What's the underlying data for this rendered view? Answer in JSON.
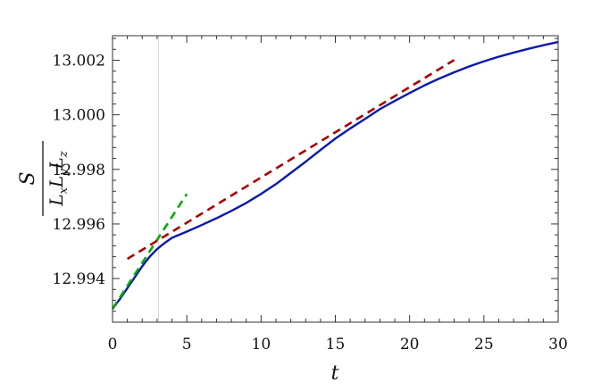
{
  "chart_data": {
    "type": "line",
    "title": "",
    "xlabel": "t",
    "ylabel": {
      "numerator": "S",
      "denominator": [
        "L",
        "x",
        "L",
        "y",
        "L",
        "z"
      ]
    },
    "xlim": [
      0,
      30
    ],
    "ylim": [
      12.9924,
      13.0029
    ],
    "x_ticks": [
      0,
      5,
      10,
      15,
      20,
      25,
      30
    ],
    "x_tick_labels": [
      "0",
      "5",
      "10",
      "15",
      "20",
      "25",
      "30"
    ],
    "y_ticks": [
      12.994,
      12.996,
      12.998,
      13.0,
      13.002
    ],
    "y_tick_labels": [
      "12.994",
      "12.996",
      "12.998",
      "13.000",
      "13.002"
    ],
    "grid": false,
    "legend": "none",
    "reference_line_x": 3.1,
    "series": [
      {
        "style": "solid",
        "color": "#0a1aa8",
        "x": [
          0,
          0.5,
          1,
          1.5,
          2,
          2.5,
          3,
          3.5,
          4,
          5,
          6,
          7,
          8,
          9,
          10,
          11,
          12,
          13,
          14,
          15,
          16,
          17,
          18,
          19,
          20,
          21,
          22,
          23,
          24,
          25,
          26,
          27,
          28,
          29,
          30
        ],
        "y": [
          12.99289,
          12.99325,
          12.99365,
          12.99405,
          12.99445,
          12.9948,
          12.99508,
          12.9953,
          12.99549,
          12.99572,
          12.99596,
          12.99621,
          12.99648,
          12.99677,
          12.9971,
          12.99746,
          12.99787,
          12.99828,
          12.99871,
          12.99913,
          12.9995,
          12.99985,
          13.00021,
          13.00051,
          13.0008,
          13.00108,
          13.00133,
          13.00156,
          13.00177,
          13.00196,
          13.00213,
          13.00228,
          13.00242,
          13.00255,
          13.00267
        ]
      },
      {
        "style": "dashed",
        "color": "#00aa00",
        "x": [
          0,
          5
        ],
        "y": [
          12.99289,
          12.9971
        ]
      },
      {
        "style": "dashed",
        "color": "#aa0000",
        "x": [
          1,
          23
        ],
        "y": [
          12.99472,
          13.00201
        ]
      }
    ]
  }
}
